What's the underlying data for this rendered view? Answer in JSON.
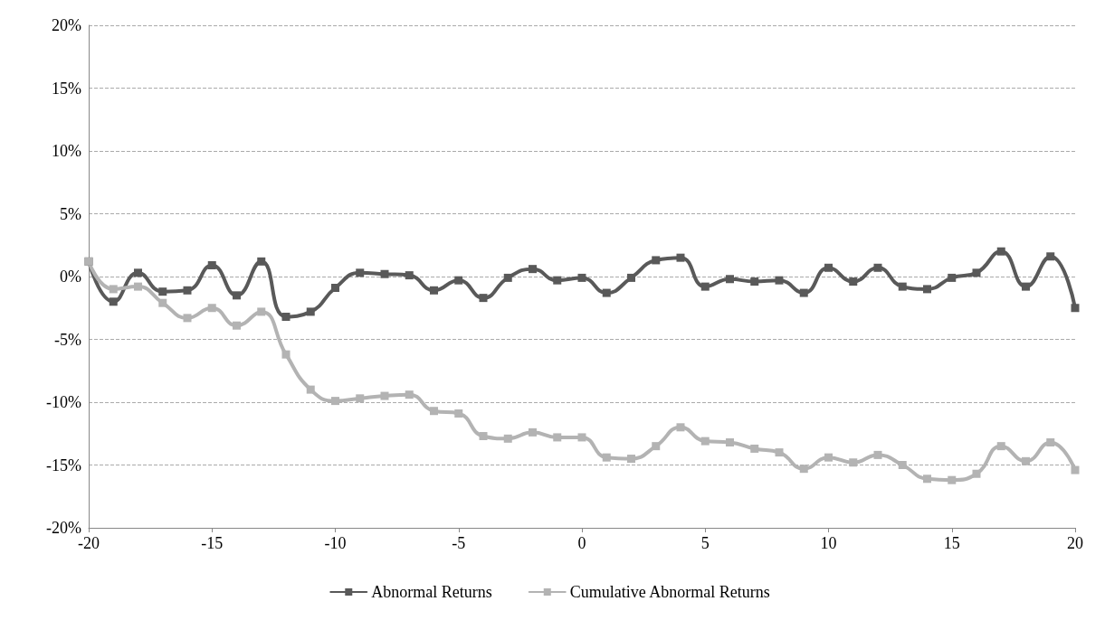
{
  "chart_data": {
    "type": "line",
    "x": [
      -20,
      -19,
      -18,
      -17,
      -16,
      -15,
      -14,
      -13,
      -12,
      -11,
      -10,
      -9,
      -8,
      -7,
      -6,
      -5,
      -4,
      -3,
      -2,
      -1,
      0,
      1,
      2,
      3,
      4,
      5,
      6,
      7,
      8,
      9,
      10,
      11,
      12,
      13,
      14,
      15,
      16,
      17,
      18,
      19,
      20
    ],
    "series": [
      {
        "name": "Abnormal Returns",
        "color": "#595959",
        "values": [
          1.2,
          -2.0,
          0.3,
          -1.2,
          -1.1,
          0.9,
          -1.5,
          1.2,
          -3.2,
          -2.8,
          -0.9,
          0.3,
          0.2,
          0.1,
          -1.1,
          -0.3,
          -1.7,
          -0.1,
          0.6,
          -0.3,
          -0.1,
          -1.3,
          -0.1,
          1.3,
          1.5,
          -0.8,
          -0.2,
          -0.4,
          -0.3,
          -1.3,
          0.7,
          -0.4,
          0.7,
          -0.8,
          -1.0,
          -0.1,
          0.3,
          2.0,
          -0.8,
          1.6,
          -2.5
        ]
      },
      {
        "name": "Cumulative Abnormal Returns",
        "color": "#b3b3b3",
        "values": [
          1.2,
          -1.0,
          -0.8,
          -2.1,
          -3.3,
          -2.5,
          -3.9,
          -2.8,
          -6.2,
          -9.0,
          -9.9,
          -9.7,
          -9.5,
          -9.4,
          -10.7,
          -10.9,
          -12.7,
          -12.9,
          -12.4,
          -12.8,
          -12.8,
          -14.4,
          -14.5,
          -13.5,
          -12.0,
          -13.1,
          -13.2,
          -13.7,
          -14.0,
          -15.3,
          -14.4,
          -14.8,
          -14.2,
          -15.0,
          -16.1,
          -16.2,
          -15.7,
          -13.5,
          -14.7,
          -13.2,
          -15.4
        ]
      }
    ],
    "xlim": [
      -20,
      20
    ],
    "xticks": [
      -20,
      -15,
      -10,
      -5,
      0,
      5,
      10,
      15,
      20
    ],
    "ylim": [
      -20,
      20
    ],
    "yticks": [
      {
        "value": -20,
        "label": "-20%"
      },
      {
        "value": -15,
        "label": "-15%"
      },
      {
        "value": -10,
        "label": "-10%"
      },
      {
        "value": -5,
        "label": "-5%"
      },
      {
        "value": 0,
        "label": "0%"
      },
      {
        "value": 5,
        "label": "5%"
      },
      {
        "value": 10,
        "label": "10%"
      },
      {
        "value": 15,
        "label": "15%"
      },
      {
        "value": 20,
        "label": "20%"
      }
    ],
    "grid": "y",
    "legend": "bottom",
    "marker": "square",
    "line_style": "solid"
  }
}
